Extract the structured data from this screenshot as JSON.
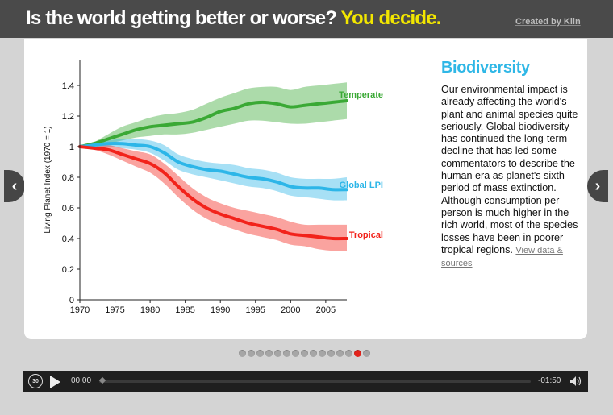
{
  "header": {
    "question": "Is the world getting better or worse?",
    "accent": "You decide.",
    "credit": "Created by Kiln"
  },
  "side": {
    "title": "Biodiversity",
    "body": "Our environmental impact is already affecting the world's plant and animal species quite seriously. Global biodiversity has continued the long-term decline that has led some commentators to describe the human era as planet's sixth period of mass extinction. Although consumption per person is much higher in the rich world, most of the species losses have been in poorer tropical regions.",
    "link": "View data & sources"
  },
  "nav": {
    "prev_icon": "chevron-left-icon",
    "next_icon": "chevron-right-icon"
  },
  "pager": {
    "count": 15,
    "active_index": 13
  },
  "player": {
    "elapsed": "00:00",
    "remaining": "-01:50",
    "replay_label": "30"
  },
  "colors": {
    "temperate": "#3aa935",
    "global": "#2db6e8",
    "tropical": "#f2231b",
    "accent": "#f2e600"
  },
  "chart_data": {
    "type": "area",
    "ylabel": "Living Planet Index (1970 = 1)",
    "xlabel": "",
    "xlim": [
      1970,
      2008
    ],
    "ylim": [
      0,
      1.4
    ],
    "xticks": [
      1970,
      1975,
      1980,
      1985,
      1990,
      1995,
      2000,
      2005
    ],
    "yticks": [
      "0",
      "0.2",
      "0.4",
      "0.6",
      "0.8",
      "1",
      "1.2",
      "1.4"
    ],
    "grid": false,
    "x": [
      1970,
      1972,
      1974,
      1976,
      1978,
      1980,
      1982,
      1984,
      1986,
      1988,
      1990,
      1992,
      1994,
      1996,
      1998,
      2000,
      2002,
      2004,
      2006,
      2008
    ],
    "series": [
      {
        "name": "Temperate",
        "values": [
          1.0,
          1.02,
          1.05,
          1.08,
          1.11,
          1.13,
          1.14,
          1.15,
          1.16,
          1.19,
          1.23,
          1.25,
          1.28,
          1.29,
          1.28,
          1.26,
          1.27,
          1.28,
          1.29,
          1.3
        ],
        "lower": [
          1.0,
          1.01,
          1.02,
          1.04,
          1.06,
          1.07,
          1.08,
          1.08,
          1.09,
          1.11,
          1.13,
          1.15,
          1.17,
          1.17,
          1.16,
          1.15,
          1.15,
          1.16,
          1.17,
          1.18
        ],
        "upper": [
          1.0,
          1.03,
          1.08,
          1.13,
          1.16,
          1.19,
          1.21,
          1.22,
          1.24,
          1.28,
          1.32,
          1.35,
          1.38,
          1.39,
          1.39,
          1.37,
          1.39,
          1.4,
          1.41,
          1.42
        ]
      },
      {
        "name": "Global LPI",
        "values": [
          1.0,
          1.01,
          1.02,
          1.02,
          1.01,
          1.0,
          0.96,
          0.9,
          0.87,
          0.85,
          0.84,
          0.82,
          0.8,
          0.79,
          0.77,
          0.74,
          0.73,
          0.73,
          0.72,
          0.72
        ],
        "lower": [
          1.0,
          1.0,
          1.0,
          0.99,
          0.98,
          0.96,
          0.91,
          0.85,
          0.82,
          0.8,
          0.78,
          0.76,
          0.74,
          0.73,
          0.71,
          0.68,
          0.67,
          0.66,
          0.65,
          0.65
        ],
        "upper": [
          1.0,
          1.02,
          1.04,
          1.05,
          1.05,
          1.04,
          1.01,
          0.95,
          0.92,
          0.9,
          0.89,
          0.88,
          0.86,
          0.85,
          0.83,
          0.8,
          0.79,
          0.79,
          0.79,
          0.8
        ]
      },
      {
        "name": "Tropical",
        "values": [
          1.0,
          0.99,
          0.98,
          0.95,
          0.92,
          0.89,
          0.83,
          0.74,
          0.66,
          0.6,
          0.56,
          0.53,
          0.5,
          0.48,
          0.46,
          0.43,
          0.42,
          0.41,
          0.4,
          0.4
        ],
        "lower": [
          1.0,
          0.98,
          0.95,
          0.91,
          0.87,
          0.83,
          0.76,
          0.67,
          0.59,
          0.53,
          0.49,
          0.46,
          0.43,
          0.41,
          0.39,
          0.36,
          0.35,
          0.33,
          0.32,
          0.32
        ],
        "upper": [
          1.0,
          1.0,
          1.01,
          0.99,
          0.97,
          0.95,
          0.89,
          0.81,
          0.73,
          0.67,
          0.63,
          0.6,
          0.58,
          0.56,
          0.54,
          0.51,
          0.49,
          0.49,
          0.49,
          0.49
        ]
      }
    ]
  }
}
